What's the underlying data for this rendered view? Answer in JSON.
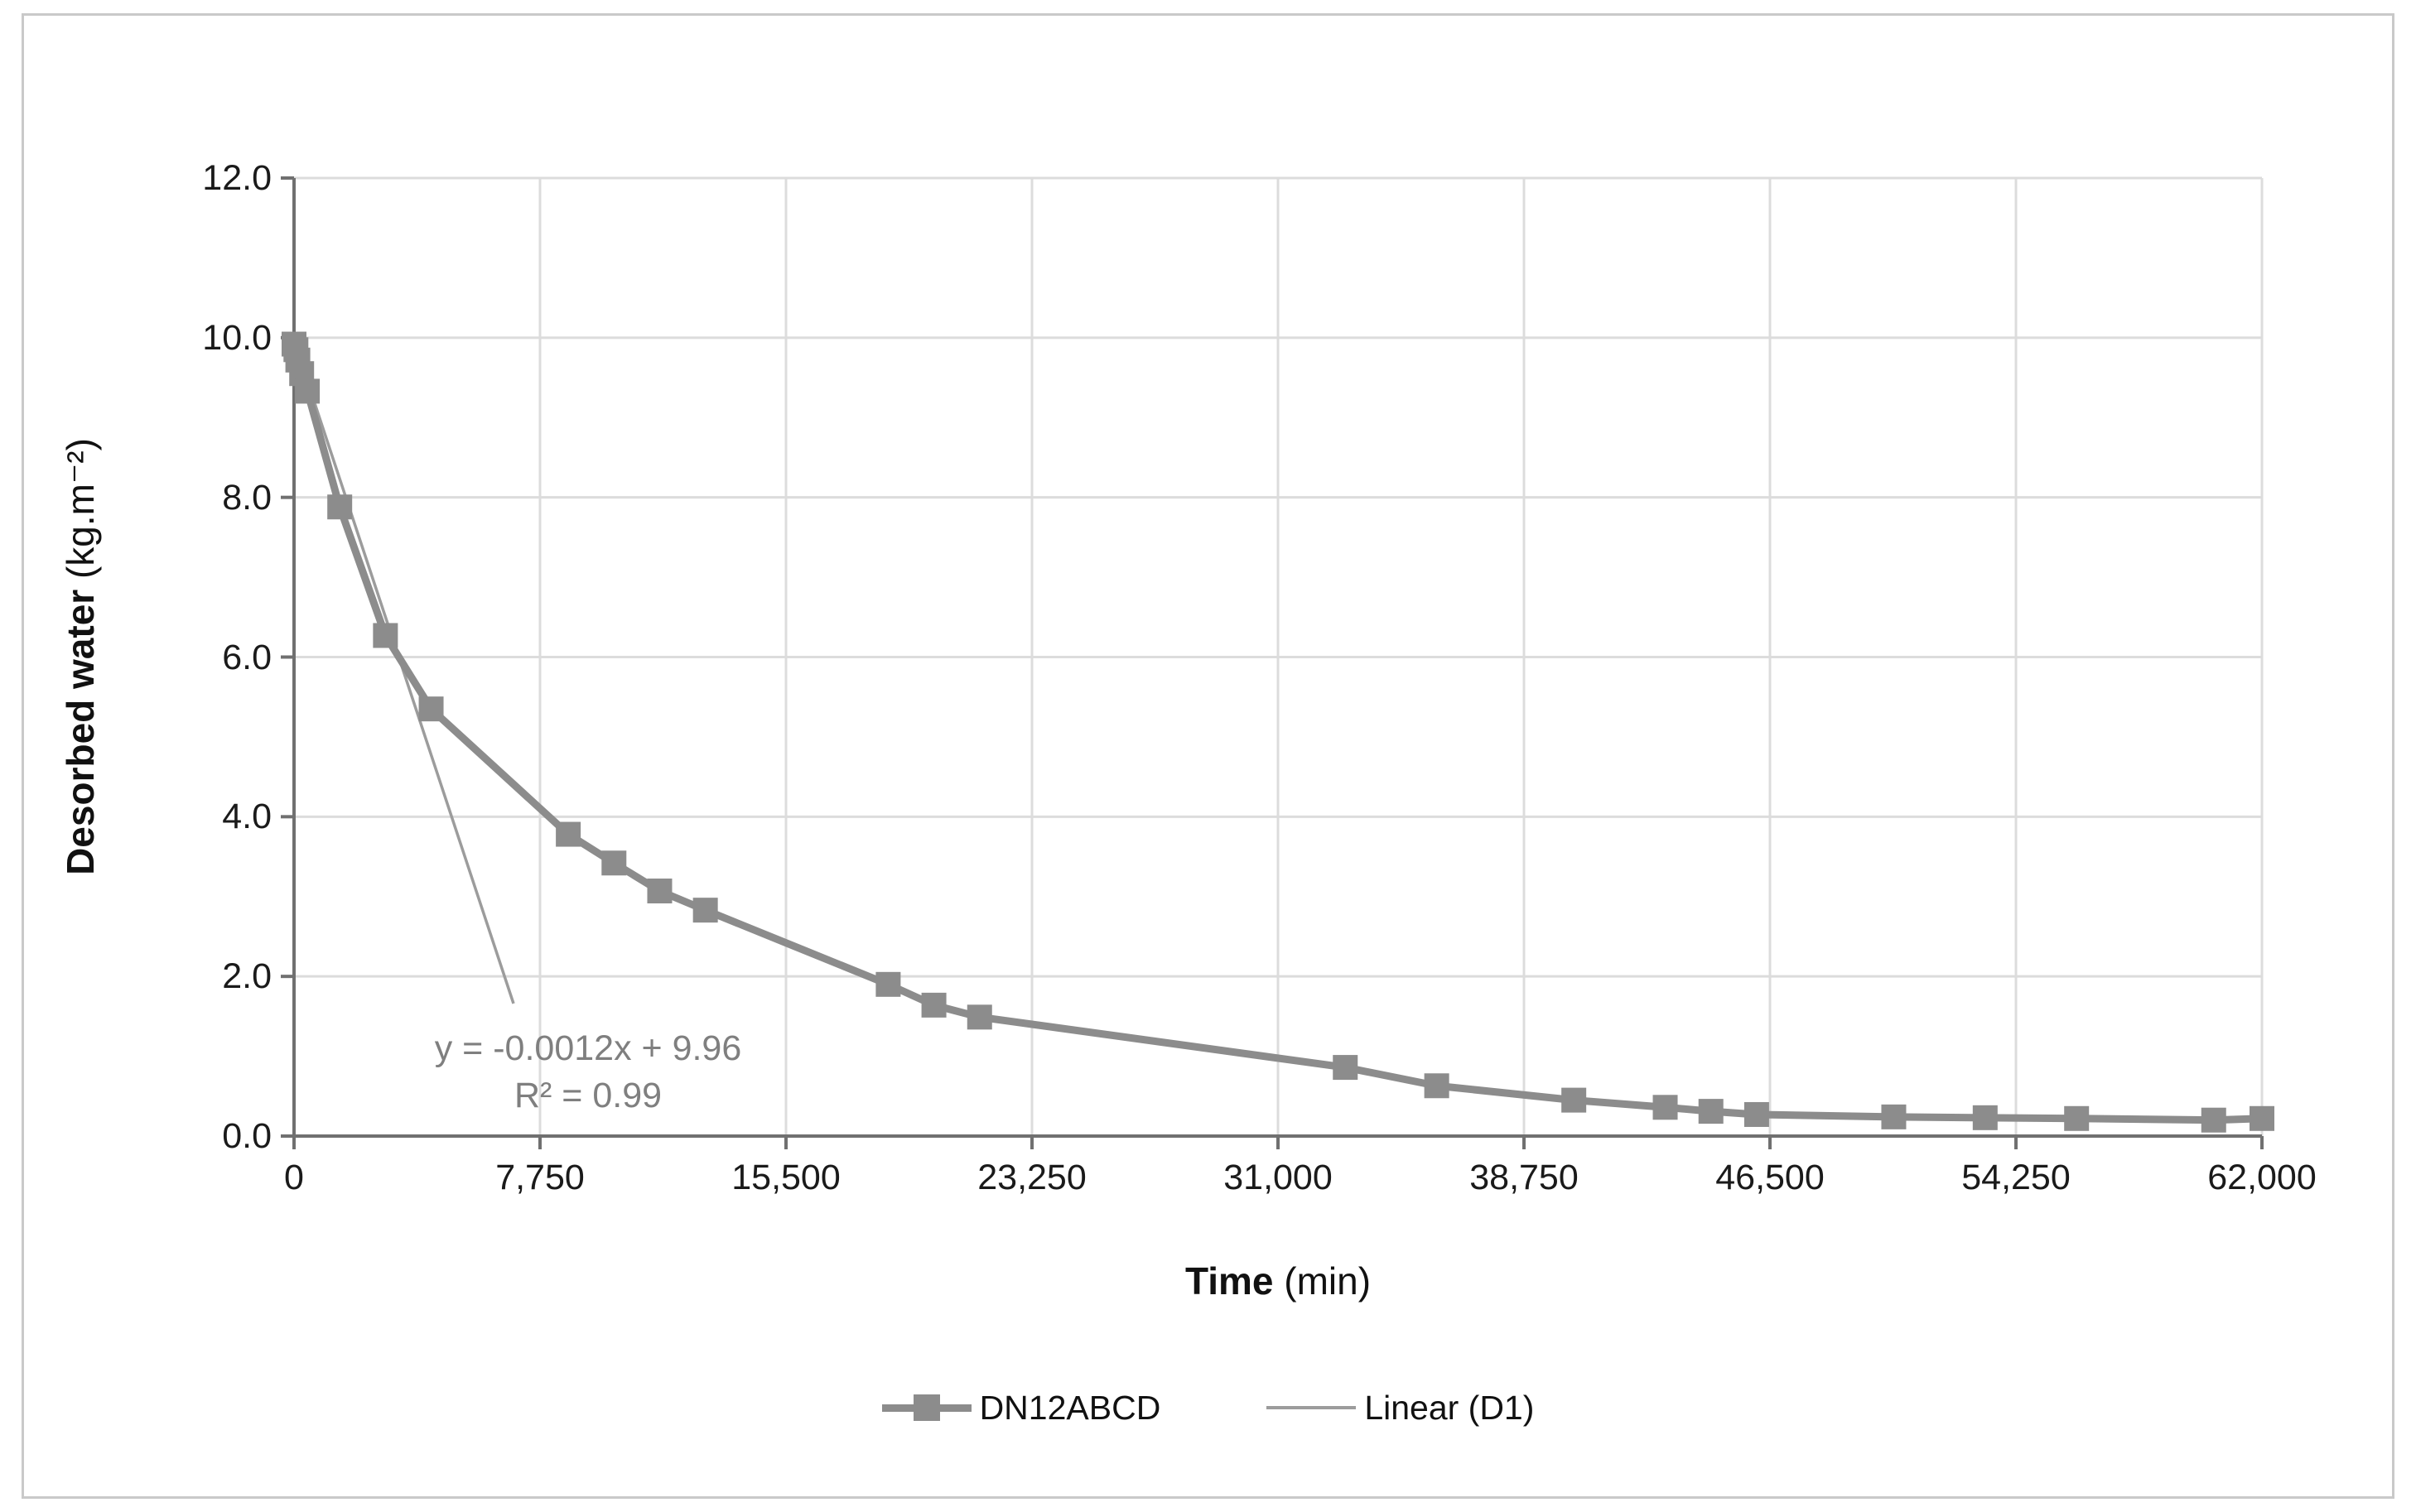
{
  "figure": {
    "background": "#ffffff",
    "border_color": "#c9c9c9"
  },
  "chart_data": {
    "type": "line",
    "title": "",
    "xlabel": "Time (min)",
    "ylabel": "Desorbed water (kg.m⁻²)",
    "xlim": [
      0,
      62000
    ],
    "ylim": [
      0,
      12
    ],
    "grid": true,
    "legend_position": "bottom-center",
    "x_ticks": [
      0,
      7750,
      15500,
      23250,
      31000,
      38750,
      46500,
      54250,
      62000
    ],
    "x_tick_labels": [
      "0",
      "7,750",
      "15,500",
      "23,250",
      "31,000",
      "38,750",
      "46,500",
      "54,250",
      "62,000"
    ],
    "y_ticks": [
      0,
      2,
      4,
      6,
      8,
      10,
      12
    ],
    "y_tick_labels": [
      "0.0",
      "2.0",
      "4.0",
      "6.0",
      "8.0",
      "10.0",
      "12.0"
    ],
    "series": [
      {
        "name": "DN12ABCD",
        "style": "thick-line-with-square-markers",
        "color": "#8c8c8c",
        "points": [
          [
            0,
            9.92
          ],
          [
            60,
            9.85
          ],
          [
            120,
            9.72
          ],
          [
            240,
            9.55
          ],
          [
            420,
            9.33
          ],
          [
            1440,
            7.88
          ],
          [
            2880,
            6.27
          ],
          [
            4320,
            5.35
          ],
          [
            8640,
            3.78
          ],
          [
            10080,
            3.42
          ],
          [
            11520,
            3.07
          ],
          [
            12960,
            2.83
          ],
          [
            18720,
            1.9
          ],
          [
            20160,
            1.64
          ],
          [
            21600,
            1.49
          ],
          [
            33120,
            0.86
          ],
          [
            36000,
            0.63
          ],
          [
            40320,
            0.45
          ],
          [
            43200,
            0.36
          ],
          [
            44640,
            0.31
          ],
          [
            46080,
            0.27
          ],
          [
            50400,
            0.24
          ],
          [
            53280,
            0.23
          ],
          [
            56160,
            0.22
          ],
          [
            60480,
            0.2
          ],
          [
            62000,
            0.22
          ]
        ]
      },
      {
        "name": "Linear (D1)",
        "style": "thin-trendline",
        "color": "#9c9c9c",
        "points": [
          [
            0,
            9.96
          ],
          [
            6915,
            1.66
          ]
        ],
        "equation": "y = -0.0012x + 9.96",
        "r_squared": "R² = 0.99"
      }
    ],
    "annotation": {
      "line1": "y = -0.0012x + 9.96",
      "line2": "R² = 0.99",
      "color": "#7f7f7f"
    }
  },
  "axis_titles": {
    "x_bold": "Time",
    "x_unit": " (min)",
    "y_bold": "Desorbed water",
    "y_unit": " (kg.m⁻²)"
  },
  "legend": {
    "items": [
      {
        "label": "DN12ABCD"
      },
      {
        "label": "Linear (D1)"
      }
    ]
  },
  "colors": {
    "series": "#8c8c8c",
    "trendline": "#9c9c9c",
    "gridline": "#dcdcdc",
    "axis": "#707070",
    "tick_labels": "#1a1a1a",
    "annotation": "#7f7f7f"
  }
}
